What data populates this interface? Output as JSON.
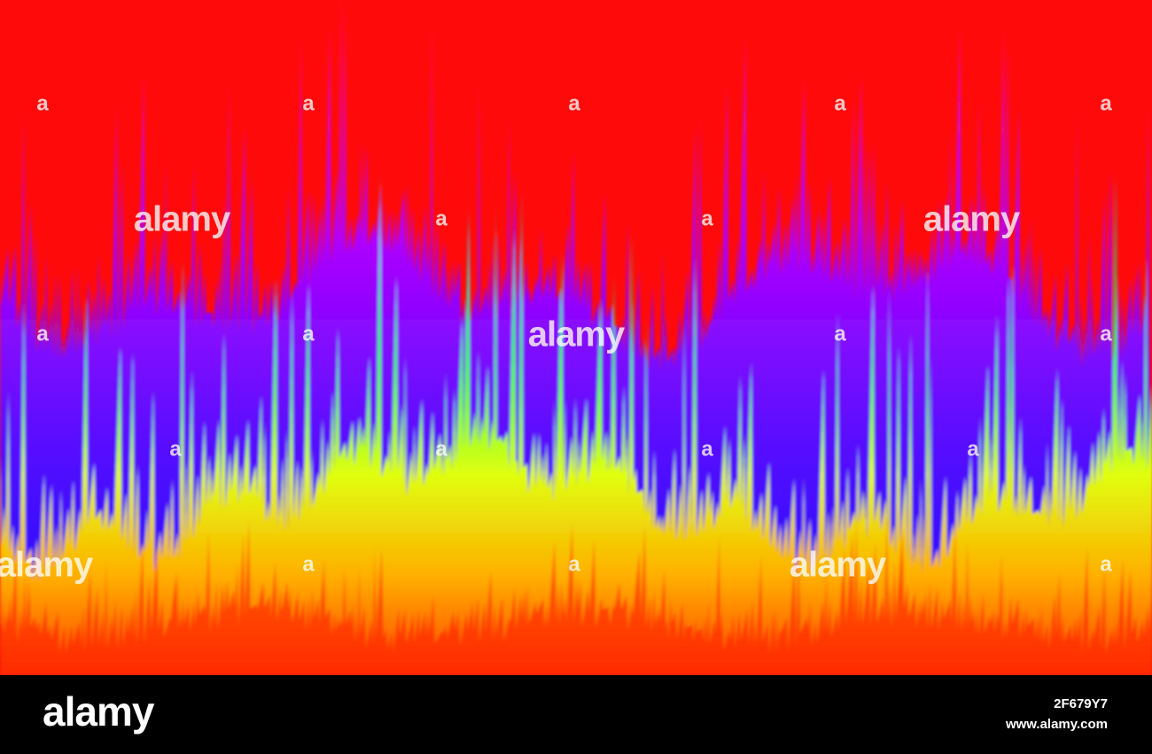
{
  "watermark": {
    "large": "alamy",
    "small": "a"
  },
  "footer": {
    "logo": "alamy",
    "image_id": "2F679Y7",
    "url": "www.alamy.com"
  }
}
